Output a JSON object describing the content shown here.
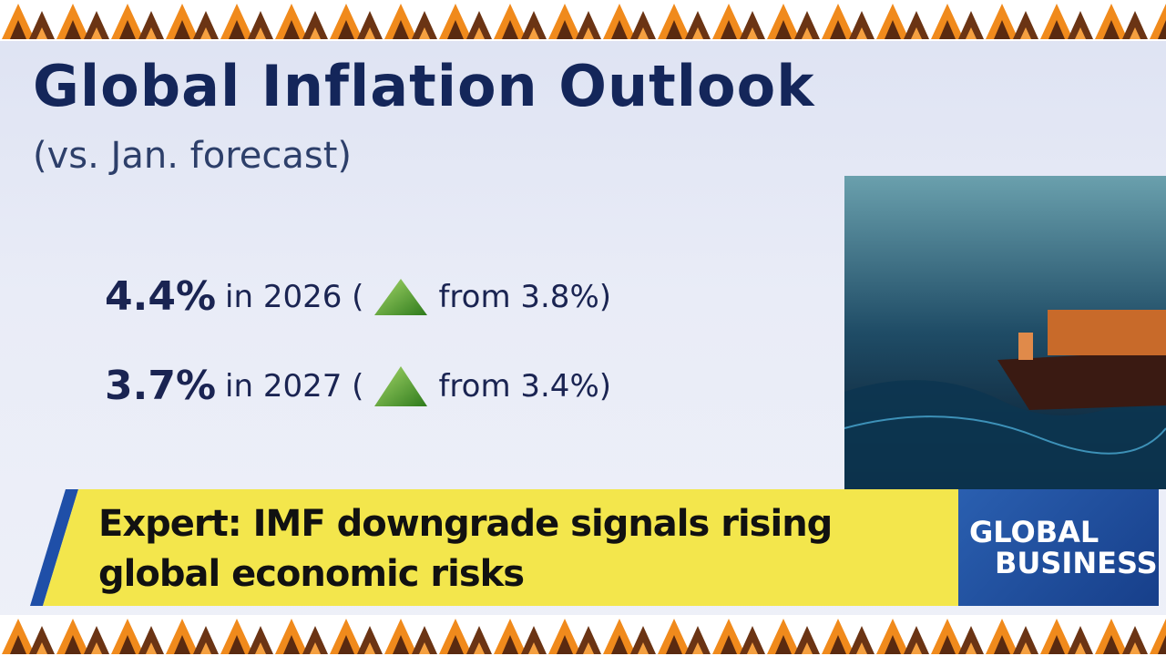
{
  "header": {
    "title": "Global Inflation Outlook",
    "subtitle": "(vs. Jan. forecast)"
  },
  "items": [
    {
      "value": "4.4%",
      "text": "in 2026 (",
      "change": "from 3.8%)"
    },
    {
      "value": "3.7%",
      "text": "in 2027 (",
      "change": "from 3.4%)"
    }
  ],
  "lower_third": {
    "headline": [
      "Expert: IMF downgrade signals rising",
      "global economic risks"
    ]
  },
  "logo": {
    "line1": "GLOBAL",
    "line2": "BUSINESS"
  }
}
